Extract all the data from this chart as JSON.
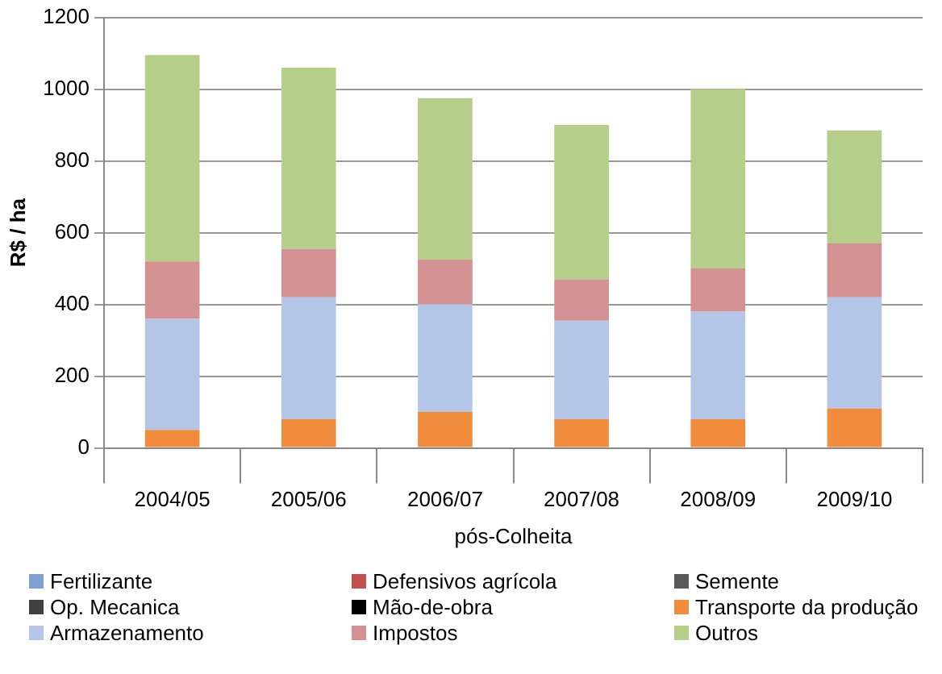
{
  "chart_data": {
    "type": "bar",
    "stacked": true,
    "xlabel": "pós-Colheita",
    "ylabel": "R$ / ha",
    "categories": [
      "2004/05",
      "2005/06",
      "2006/07",
      "2007/08",
      "2008/09",
      "2009/10"
    ],
    "series": [
      {
        "name": "Fertilizante",
        "color": "#7f9fd0",
        "values": [
          0,
          0,
          0,
          0,
          0,
          0
        ]
      },
      {
        "name": "Defensivos agrícola",
        "color": "#c0504d",
        "values": [
          0,
          0,
          0,
          0,
          0,
          0
        ]
      },
      {
        "name": "Semente",
        "color": "#595959",
        "values": [
          0,
          0,
          0,
          0,
          0,
          0
        ]
      },
      {
        "name": "Op. Mecanica",
        "color": "#404040",
        "values": [
          0,
          0,
          0,
          0,
          0,
          0
        ]
      },
      {
        "name": "Mão-de-obra",
        "color": "#000000",
        "values": [
          0,
          0,
          0,
          0,
          0,
          0
        ]
      },
      {
        "name": "Transporte da produção",
        "color": "#f08c3c",
        "values": [
          50,
          80,
          100,
          80,
          80,
          110
        ]
      },
      {
        "name": "Armazenamento",
        "color": "#b4c6e7",
        "values": [
          310,
          340,
          300,
          275,
          300,
          310
        ]
      },
      {
        "name": "Impostos",
        "color": "#d39291",
        "values": [
          160,
          135,
          125,
          115,
          120,
          150
        ]
      },
      {
        "name": "Outros",
        "color": "#b5cf8a",
        "values": [
          575,
          505,
          450,
          430,
          500,
          315
        ]
      }
    ],
    "ylim": [
      0,
      1200
    ],
    "yticks": [
      0,
      200,
      400,
      600,
      800,
      1000,
      1200
    ],
    "grid": "y",
    "legend": "bottom"
  }
}
